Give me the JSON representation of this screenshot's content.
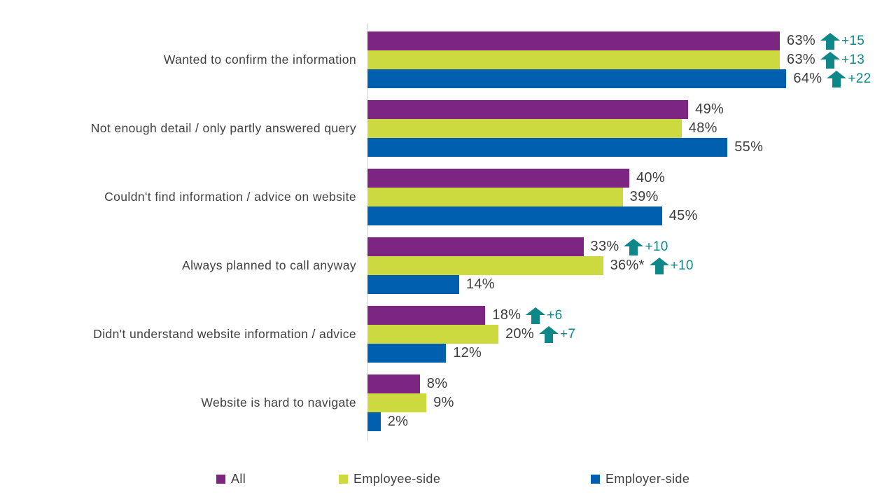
{
  "colors": {
    "all_series": "#7D2583",
    "employee_series": "#CDDA3F",
    "employer_series": "#005FAE",
    "arrow": "#0E8789",
    "axis": "#CFCFCF",
    "text": "#404040"
  },
  "legend": {
    "items": [
      {
        "label": "All",
        "color": "#7D2583"
      },
      {
        "label": "Employee-side",
        "color": "#CDDA3F"
      },
      {
        "label": "Employer-side",
        "color": "#005FAE"
      }
    ]
  },
  "chart_data": {
    "type": "bar",
    "orientation": "horizontal",
    "xlim": [
      0,
      80
    ],
    "grid": false,
    "legend_position": "bottom",
    "categories": [
      "Wanted to confirm the information",
      "Not enough detail / only partly answered query",
      "Couldn't find information / advice on website",
      "Always planned to call anyway",
      "Didn't understand website information / advice",
      "Website is hard to navigate"
    ],
    "series": [
      {
        "name": "All",
        "color": "#7D2583",
        "values": [
          63,
          49,
          40,
          33,
          18,
          8
        ]
      },
      {
        "name": "Employee-side",
        "color": "#CDDA3F",
        "values": [
          63,
          48,
          39,
          36,
          20,
          9
        ]
      },
      {
        "name": "Employer-side",
        "color": "#005FAE",
        "values": [
          64,
          55,
          45,
          14,
          12,
          2
        ]
      }
    ],
    "groups": [
      {
        "category": "Wanted to confirm the information",
        "bars": [
          {
            "series": "All",
            "value": 63,
            "label": "63%",
            "delta": "+15"
          },
          {
            "series": "Employee-side",
            "value": 63,
            "label": "63%",
            "delta": "+13"
          },
          {
            "series": "Employer-side",
            "value": 64,
            "label": "64%",
            "delta": "+22"
          }
        ]
      },
      {
        "category": "Not enough detail / only partly answered query",
        "bars": [
          {
            "series": "All",
            "value": 49,
            "label": "49%",
            "delta": null
          },
          {
            "series": "Employee-side",
            "value": 48,
            "label": "48%",
            "delta": null
          },
          {
            "series": "Employer-side",
            "value": 55,
            "label": "55%",
            "delta": null
          }
        ]
      },
      {
        "category": "Couldn't find information / advice on website",
        "bars": [
          {
            "series": "All",
            "value": 40,
            "label": "40%",
            "delta": null
          },
          {
            "series": "Employee-side",
            "value": 39,
            "label": "39%",
            "delta": null
          },
          {
            "series": "Employer-side",
            "value": 45,
            "label": "45%",
            "delta": null
          }
        ]
      },
      {
        "category": "Always planned to call anyway",
        "bars": [
          {
            "series": "All",
            "value": 33,
            "label": "33%",
            "delta": "+10"
          },
          {
            "series": "Employee-side",
            "value": 36,
            "label": "36%*",
            "delta": "+10"
          },
          {
            "series": "Employer-side",
            "value": 14,
            "label": "14%",
            "delta": null
          }
        ]
      },
      {
        "category": "Didn't understand website information / advice",
        "bars": [
          {
            "series": "All",
            "value": 18,
            "label": "18%",
            "delta": "+6"
          },
          {
            "series": "Employee-side",
            "value": 20,
            "label": "20%",
            "delta": "+7"
          },
          {
            "series": "Employer-side",
            "value": 12,
            "label": "12%",
            "delta": null
          }
        ]
      },
      {
        "category": "Website is hard to navigate",
        "bars": [
          {
            "series": "All",
            "value": 8,
            "label": "8%",
            "delta": null
          },
          {
            "series": "Employee-side",
            "value": 9,
            "label": "9%",
            "delta": null
          },
          {
            "series": "Employer-side",
            "value": 2,
            "label": "2%",
            "delta": null
          }
        ]
      }
    ]
  }
}
